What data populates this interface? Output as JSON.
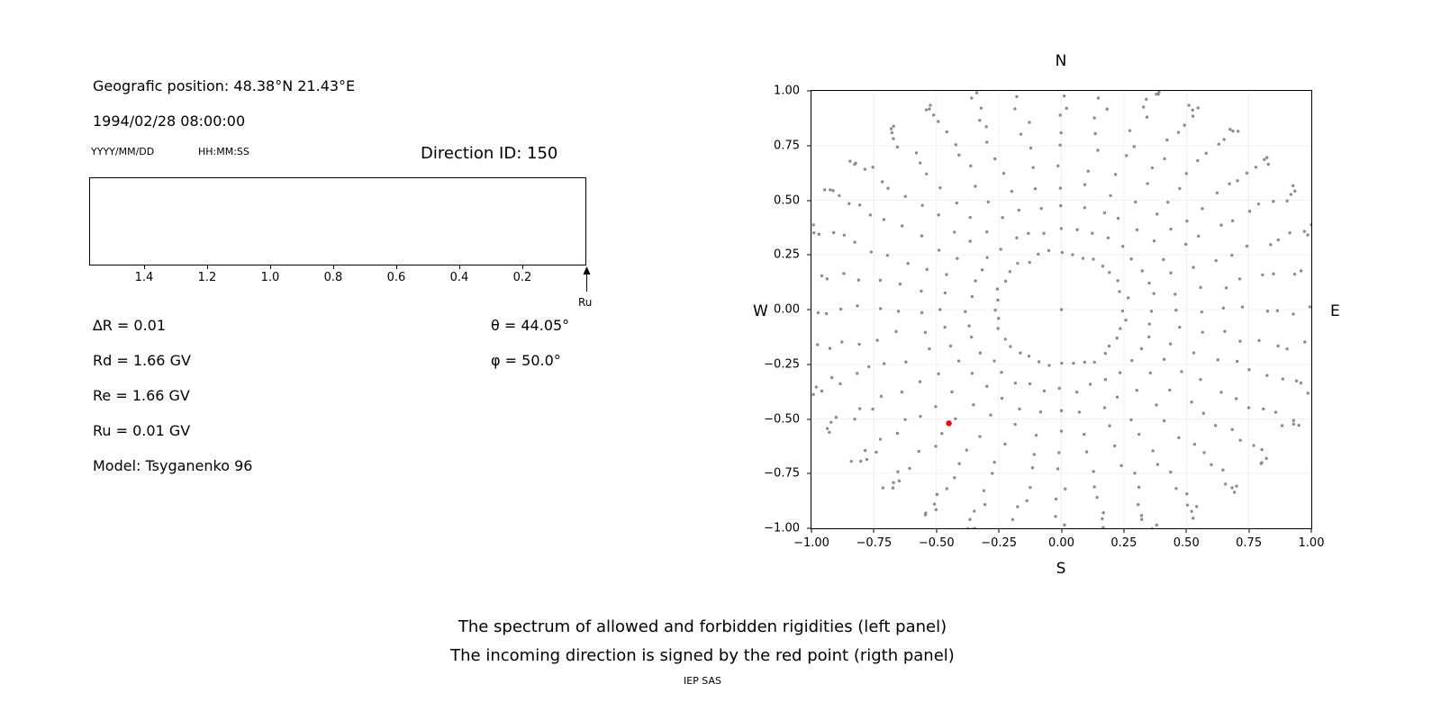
{
  "page": {
    "background": "#ffffff"
  },
  "left_panel": {
    "geo_position": "Geografic position: 48.38°N 21.43°E",
    "datetime": "1994/02/28 08:00:00",
    "date_format": "YYYY/MM/DD",
    "time_format": "HH:MM:SS",
    "direction_id": "Direction ID: 150",
    "arrow_label": "Ru",
    "params": [
      "∆R = 0.01",
      "Rd = 1.66 GV",
      "Re = 1.66 GV",
      "Ru = 0.01 GV",
      "Model: Tsyganenko 96"
    ],
    "angles": [
      "θ = 44.05°",
      "φ = 50.0°"
    ]
  },
  "right_panel": {
    "compass": {
      "north": "N",
      "south": "S",
      "west": "W",
      "east": "E"
    }
  },
  "chart_data": [
    {
      "type": "scatter",
      "panel": "left",
      "title": "",
      "tick_labels": [
        "1.4",
        "1.2",
        "1.0",
        "0.8",
        "0.6",
        "0.4",
        "0.2"
      ],
      "values": [],
      "note": "empty axes strip (spectrum of allowed/forbidden rigidities); an upward arrow labeled Ru marks the right end of the reversed rigidity axis",
      "annotations": [
        {
          "label": "Ru",
          "marker": "up-arrow",
          "position": "right-end"
        }
      ]
    },
    {
      "type": "scatter",
      "panel": "right",
      "xlim": [
        -1.0,
        1.0
      ],
      "ylim": [
        -1.0,
        1.0
      ],
      "x_tick_labels": [
        "−1.00",
        "−0.75",
        "−0.50",
        "−0.25",
        "0.00",
        "0.25",
        "0.50",
        "0.75",
        "1.00"
      ],
      "y_tick_labels": [
        "1.00",
        "0.75",
        "0.50",
        "0.25",
        "0.00",
        "−0.25",
        "−0.50",
        "−0.75",
        "−1.00"
      ],
      "x_tick_values": [
        -1,
        -0.75,
        -0.5,
        -0.25,
        0,
        0.25,
        0.5,
        0.75,
        1
      ],
      "y_tick_values": [
        -1,
        -0.75,
        -0.5,
        -0.25,
        0,
        0.25,
        0.5,
        0.75,
        1
      ],
      "grid": true,
      "grid_color": "#f0f0f0",
      "pattern": {
        "description": "gray dots arranged in 36 radial spokes from an inner ring r≈0.26 out to r≈1.08 (clipped at the axes box), dot spacing denser toward the outer end; single gray dot at the origin",
        "n_spokes": 36,
        "dots_per_spoke": 14,
        "r_inner": 0.26,
        "r_outer": 1.08,
        "ease_exponent": 1.8,
        "angle_jitter_deg": 3,
        "radius_jitter": 0.03,
        "dot_color": "#8c8c8c",
        "origin_dot": [
          0,
          0
        ]
      },
      "red_point": {
        "x": -0.45,
        "y": -0.52,
        "color": "#ff0000",
        "meaning": "incoming direction"
      }
    }
  ],
  "caption": {
    "line1": "The spectrum of allowed and forbidden rigidities (left panel)",
    "line2": "The incoming direction is signed by the red point (rigth panel)",
    "credit": "IEP SAS"
  }
}
